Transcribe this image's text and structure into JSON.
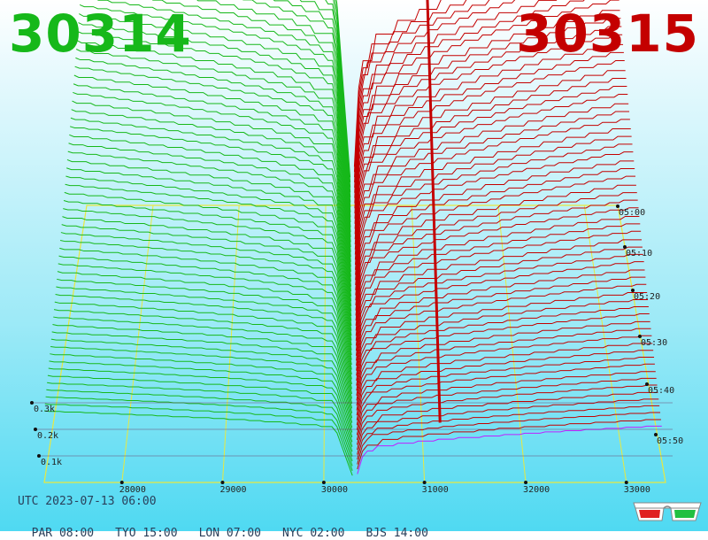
{
  "headline": {
    "bid": "30314",
    "ask": "30315",
    "bid_color": "#16b81a",
    "ask_color": "#c40000"
  },
  "timestamp": "UTC 2023-07-13 06:00",
  "timezones": [
    "PAR 08:00",
    "TYO 15:00",
    "LON 07:00",
    "NYC 02:00",
    "BJS 14:00"
  ],
  "chart_data": {
    "type": "3d-depth",
    "x_ticks": [
      "28000",
      "29000",
      "30000",
      "31000",
      "32000",
      "33000"
    ],
    "z_ticks": [
      "0.1k",
      "0.2k",
      "0.3k"
    ],
    "time_ticks": [
      "05:00",
      "05:10",
      "05:20",
      "05:30",
      "05:40",
      "05:50"
    ],
    "bid_color": "#16b81a",
    "ask_color": "#c40000",
    "latest_slice_color": "#c020ff",
    "grid_color": "#e8e840"
  },
  "icons": {
    "glasses": "3d-glasses-icon"
  }
}
